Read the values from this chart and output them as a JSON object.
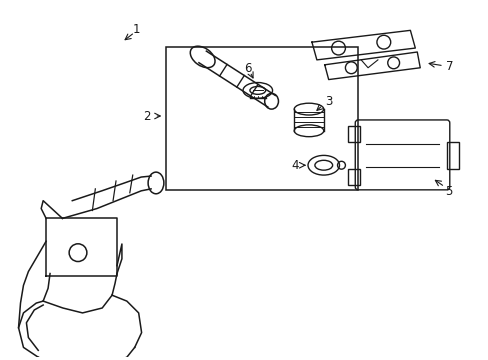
{
  "background_color": "#ffffff",
  "line_color": "#1a1a1a",
  "line_width": 1.0,
  "fig_width": 4.89,
  "fig_height": 3.6,
  "dpi": 100,
  "label_fontsize": 8.5
}
